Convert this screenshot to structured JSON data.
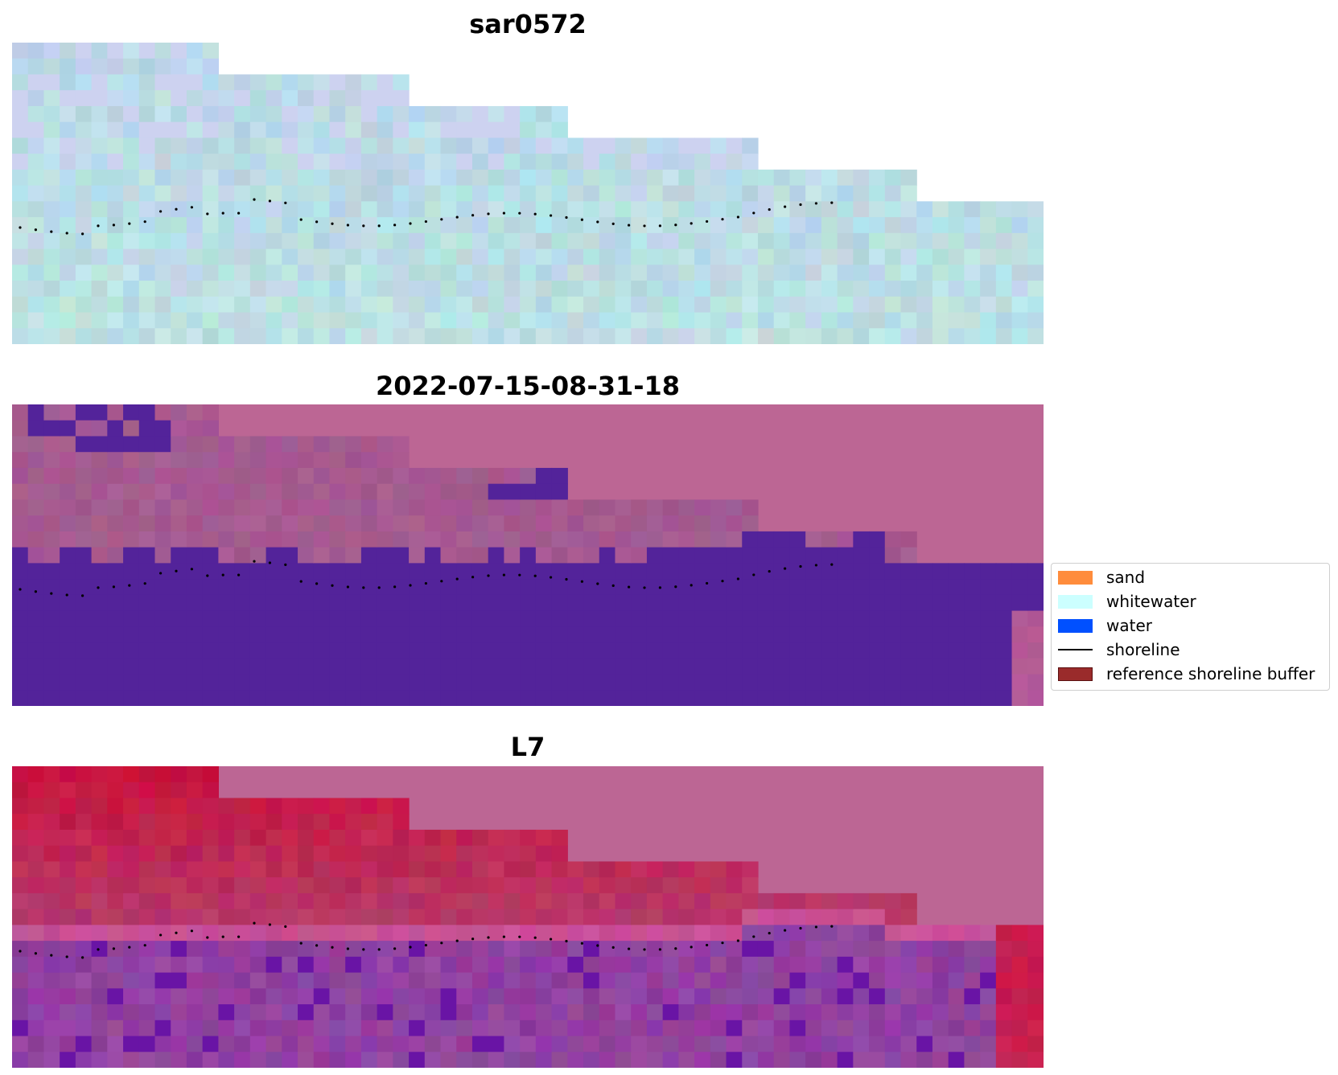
{
  "panels": [
    {
      "title": "sar0572",
      "style": "sar"
    },
    {
      "title": "2022-07-15-08-31-18",
      "style": "class"
    },
    {
      "title": "L7",
      "style": "ndwi"
    }
  ],
  "legend": {
    "items": [
      {
        "label": "sand",
        "kind": "patch",
        "color": "#ff8c3c"
      },
      {
        "label": "whitewater",
        "kind": "patch",
        "color": "#ccffff"
      },
      {
        "label": "water",
        "kind": "patch",
        "color": "#0050ff"
      },
      {
        "label": "shoreline",
        "kind": "line",
        "color": "#000000"
      },
      {
        "label": "reference shoreline buffer",
        "kind": "patch",
        "color": "#9a2b2b"
      }
    ]
  },
  "colors": {
    "sar_base": "#b9dbe6",
    "land_mask": "#bc6694",
    "water_class": "#53239a",
    "land_class": "#a55a90",
    "ndwi_land": "#c4143c",
    "ndwi_water": "#8d3e9c",
    "shoreline_points": "#000000"
  }
}
